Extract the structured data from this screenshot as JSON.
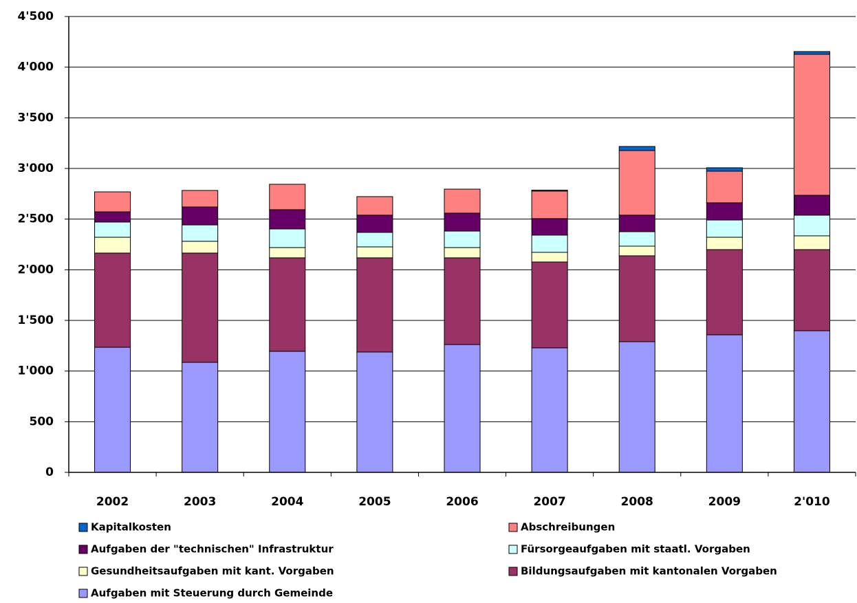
{
  "chart_data": {
    "type": "stacked_bar",
    "categories": [
      "2002",
      "2003",
      "2004",
      "2005",
      "2006",
      "2007",
      "2008",
      "2009",
      "2'010"
    ],
    "series": [
      {
        "name": "Aufgaben mit Steuerung durch Gemeinde",
        "color": "#9999ff",
        "values": [
          1235,
          1086,
          1195,
          1188,
          1262,
          1229,
          1290,
          1358,
          1398
        ]
      },
      {
        "name": "Bildungsaufgaben mit kantonalen Vorgaben",
        "color": "#993366",
        "values": [
          930,
          1079,
          923,
          930,
          856,
          848,
          848,
          841,
          801
        ]
      },
      {
        "name": "Gesundheitsaufgaben mit kant. Vorgaben",
        "color": "#ffffcc",
        "values": [
          156,
          116,
          101,
          108,
          101,
          95,
          95,
          122,
          136
        ]
      },
      {
        "name": "Fürsorgeaufgaben mit staatl. Vorgaben",
        "color": "#ccffff",
        "values": [
          150,
          162,
          184,
          143,
          163,
          170,
          143,
          170,
          204
        ]
      },
      {
        "name": "Aufgaben der \"technischen\" Infrastruktur",
        "color": "#660066",
        "values": [
          101,
          177,
          190,
          170,
          177,
          163,
          163,
          170,
          196
        ]
      },
      {
        "name": "Abschreibungen",
        "color": "#ff8080",
        "values": [
          197,
          163,
          251,
          183,
          237,
          271,
          638,
          312,
          1392
        ]
      },
      {
        "name": "Kapitalkosten",
        "color": "#0066cc",
        "values": [
          0,
          0,
          0,
          0,
          0,
          10,
          40,
          34,
          27
        ]
      }
    ],
    "ylim": [
      0,
      4500
    ],
    "yticks": [
      0,
      500,
      {
        "value": 1000,
        "label": "1'000"
      },
      {
        "value": 1500,
        "label": "1'500"
      },
      {
        "value": 2000,
        "label": "2'000"
      },
      {
        "value": 2500,
        "label": "2'500"
      },
      {
        "value": 3000,
        "label": "3'000"
      },
      {
        "value": 3500,
        "label": "3'500"
      },
      {
        "value": 4000,
        "label": "4'000"
      },
      {
        "value": 4500,
        "label": "4'500"
      }
    ],
    "grid": true
  }
}
